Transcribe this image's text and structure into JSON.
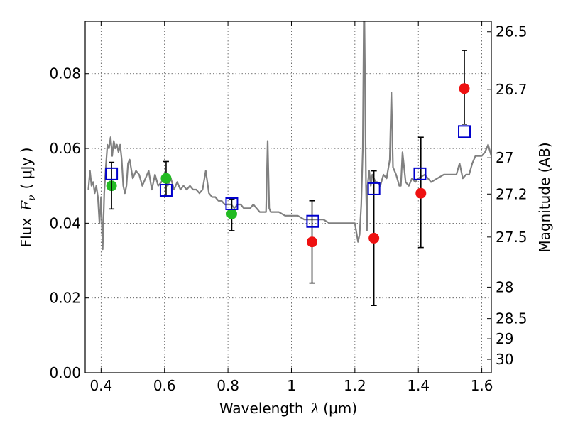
{
  "chart_data": {
    "type": "scatter",
    "x_axis": {
      "label_prefix": "Wavelength",
      "label_var": "λ",
      "label_unit": "(μm)",
      "lim": [
        0.35,
        1.63
      ],
      "ticks": [
        0.4,
        0.6,
        0.8,
        1.0,
        1.2,
        1.4,
        1.6
      ],
      "tick_labels": [
        "0.4",
        "0.6",
        "0.8",
        "1",
        "1.2",
        "1.4",
        "1.6"
      ]
    },
    "y_axis": {
      "label_prefix": "Flux",
      "label_var": "F",
      "label_sub": "ν",
      "label_unit": "( μJy )",
      "lim": [
        0.0,
        0.094
      ],
      "ticks": [
        0.0,
        0.02,
        0.04,
        0.06,
        0.08
      ],
      "tick_labels": [
        "0.00",
        "0.02",
        "0.04",
        "0.06",
        "0.08"
      ]
    },
    "y2_axis": {
      "label": "Magnitude (AB)",
      "ticks": [
        {
          "flux": 0.0912,
          "label": "26.5"
        },
        {
          "flux": 0.0758,
          "label": "26.7"
        },
        {
          "flux": 0.0575,
          "label": "27"
        },
        {
          "flux": 0.0478,
          "label": "27.2"
        },
        {
          "flux": 0.0363,
          "label": "27.5"
        },
        {
          "flux": 0.0229,
          "label": "28"
        },
        {
          "flux": 0.0145,
          "label": "28.5"
        },
        {
          "flux": 0.0091,
          "label": "29"
        },
        {
          "flux": 0.0036,
          "label": "30"
        }
      ]
    },
    "grid": true,
    "series": [
      {
        "kind": "line",
        "color": "#808080",
        "x": [
          0.36,
          0.365,
          0.37,
          0.375,
          0.38,
          0.385,
          0.39,
          0.395,
          0.4,
          0.405,
          0.41,
          0.415,
          0.42,
          0.425,
          0.43,
          0.435,
          0.44,
          0.445,
          0.45,
          0.455,
          0.46,
          0.465,
          0.47,
          0.475,
          0.48,
          0.485,
          0.49,
          0.5,
          0.51,
          0.52,
          0.53,
          0.54,
          0.55,
          0.56,
          0.57,
          0.58,
          0.59,
          0.6,
          0.61,
          0.62,
          0.63,
          0.64,
          0.65,
          0.66,
          0.67,
          0.68,
          0.69,
          0.7,
          0.71,
          0.72,
          0.73,
          0.74,
          0.75,
          0.76,
          0.77,
          0.78,
          0.79,
          0.8,
          0.81,
          0.82,
          0.83,
          0.84,
          0.85,
          0.86,
          0.87,
          0.88,
          0.89,
          0.9,
          0.91,
          0.92,
          0.925,
          0.93,
          0.935,
          0.94,
          0.95,
          0.96,
          0.98,
          1.0,
          1.02,
          1.04,
          1.06,
          1.08,
          1.1,
          1.12,
          1.14,
          1.16,
          1.18,
          1.2,
          1.21,
          1.215,
          1.22,
          1.225,
          1.228,
          1.23,
          1.235,
          1.238,
          1.24,
          1.245,
          1.25,
          1.255,
          1.26,
          1.265,
          1.27,
          1.28,
          1.29,
          1.3,
          1.31,
          1.315,
          1.32,
          1.33,
          1.34,
          1.345,
          1.35,
          1.36,
          1.37,
          1.38,
          1.39,
          1.4,
          1.42,
          1.44,
          1.46,
          1.48,
          1.5,
          1.52,
          1.53,
          1.54,
          1.55,
          1.56,
          1.57,
          1.58,
          1.59,
          1.6,
          1.61,
          1.62,
          1.63
        ],
        "y": [
          0.049,
          0.054,
          0.05,
          0.051,
          0.048,
          0.05,
          0.047,
          0.04,
          0.047,
          0.033,
          0.048,
          0.055,
          0.061,
          0.06,
          0.063,
          0.058,
          0.062,
          0.06,
          0.061,
          0.059,
          0.061,
          0.057,
          0.05,
          0.048,
          0.05,
          0.056,
          0.057,
          0.052,
          0.054,
          0.053,
          0.05,
          0.052,
          0.054,
          0.049,
          0.053,
          0.05,
          0.051,
          0.053,
          0.05,
          0.052,
          0.049,
          0.051,
          0.049,
          0.05,
          0.049,
          0.05,
          0.049,
          0.049,
          0.048,
          0.049,
          0.054,
          0.048,
          0.047,
          0.047,
          0.046,
          0.046,
          0.045,
          0.045,
          0.045,
          0.044,
          0.045,
          0.045,
          0.044,
          0.044,
          0.044,
          0.045,
          0.044,
          0.043,
          0.043,
          0.043,
          0.062,
          0.044,
          0.043,
          0.043,
          0.043,
          0.043,
          0.042,
          0.042,
          0.042,
          0.041,
          0.041,
          0.041,
          0.041,
          0.04,
          0.04,
          0.04,
          0.04,
          0.04,
          0.035,
          0.037,
          0.045,
          0.06,
          0.094,
          0.094,
          0.05,
          0.038,
          0.05,
          0.054,
          0.05,
          0.053,
          0.052,
          0.051,
          0.051,
          0.05,
          0.053,
          0.052,
          0.057,
          0.075,
          0.055,
          0.053,
          0.05,
          0.05,
          0.059,
          0.051,
          0.05,
          0.052,
          0.051,
          0.052,
          0.053,
          0.051,
          0.052,
          0.053,
          0.053,
          0.053,
          0.056,
          0.052,
          0.053,
          0.053,
          0.056,
          0.058,
          0.058,
          0.058,
          0.059,
          0.061,
          0.058
        ]
      },
      {
        "kind": "points",
        "marker": "circle",
        "color": "#22bb22",
        "x": [
          0.433,
          0.605,
          0.812
        ],
        "y": [
          0.05,
          0.052,
          0.0425
        ],
        "err": [
          null,
          [
            0.0475,
            0.0565
          ],
          [
            0.038,
            0.0465
          ]
        ]
      },
      {
        "kind": "points",
        "marker": "circle",
        "color": "#ee1111",
        "x": [
          1.065,
          1.26,
          1.408,
          1.545
        ],
        "y": [
          0.035,
          0.036,
          0.048,
          0.076
        ],
        "err": [
          [
            0.024,
            0.046
          ],
          [
            0.018,
            0.054
          ],
          [
            0.0335,
            0.063
          ],
          [
            0.0665,
            0.0862
          ]
        ]
      },
      {
        "kind": "points",
        "marker": "square-open",
        "color": "#0000cc",
        "x": [
          0.433,
          0.605,
          0.812,
          1.067,
          1.26,
          1.405,
          1.545
        ],
        "y": [
          0.0532,
          0.0488,
          0.0452,
          0.0405,
          0.0492,
          0.0532,
          0.0645
        ],
        "err": [
          [
            0.0438,
            0.0563
          ],
          null,
          null,
          null,
          null,
          null,
          null
        ]
      }
    ]
  }
}
